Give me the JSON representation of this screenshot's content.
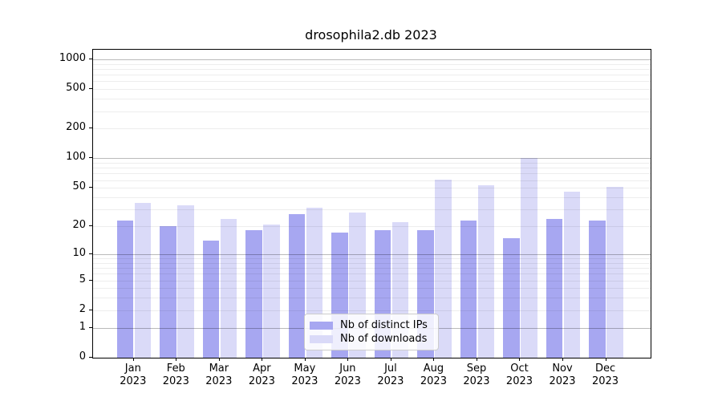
{
  "figure": {
    "background": "#ffffff"
  },
  "chart_data": {
    "type": "bar",
    "title": "drosophila2.db 2023",
    "categories": [
      "Jan",
      "Feb",
      "Mar",
      "Apr",
      "May",
      "Jun",
      "Jul",
      "Aug",
      "Sep",
      "Oct",
      "Nov",
      "Dec"
    ],
    "x_tick_second_line": "2023",
    "series": [
      {
        "name": "Nb of distinct IPs",
        "color": "#a7a7f1",
        "values": [
          23,
          20,
          14,
          18,
          27,
          17,
          18,
          18,
          23,
          15,
          24,
          23
        ]
      },
      {
        "name": "Nb of downloads",
        "color": "#dadaf8",
        "values": [
          35,
          33,
          24,
          21,
          31,
          28,
          22,
          61,
          53,
          100,
          46,
          51
        ]
      }
    ],
    "xlabel": "",
    "ylabel": "",
    "yscale": "log1p",
    "ylim": [
      0,
      1250
    ],
    "y_ticks": [
      0,
      1,
      2,
      5,
      10,
      20,
      50,
      100,
      200,
      500,
      1000
    ],
    "y_major_gridlines": [
      1,
      10,
      100,
      1000
    ],
    "y_minor_gridlines": [
      2,
      3,
      4,
      5,
      6,
      7,
      8,
      9,
      20,
      30,
      40,
      50,
      60,
      70,
      80,
      90,
      200,
      300,
      400,
      500,
      600,
      700,
      800,
      900
    ],
    "grid": true,
    "legend": {
      "position": "bottom-center",
      "entries": [
        "Nb of distinct IPs",
        "Nb of downloads"
      ]
    }
  }
}
